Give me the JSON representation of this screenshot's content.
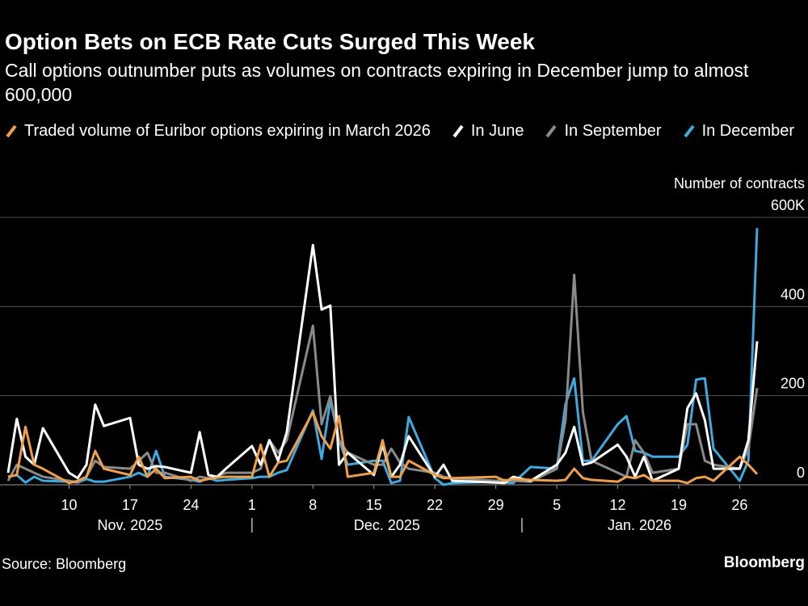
{
  "chart_data": {
    "type": "line",
    "title": "Option Bets on ECB Rate Cuts Surged This Week",
    "subtitle": "Call options outnumber puts as volumes on contracts expiring in December jump to almost 600,000",
    "y_axis_label": "Number of contracts",
    "source": "Source: Bloomberg",
    "brand": "Bloomberg",
    "x": [
      "2025-11-03",
      "2025-11-04",
      "2025-11-05",
      "2025-11-06",
      "2025-11-07",
      "2025-11-10",
      "2025-11-11",
      "2025-11-12",
      "2025-11-13",
      "2025-11-14",
      "2025-11-17",
      "2025-11-18",
      "2025-11-19",
      "2025-11-20",
      "2025-11-21",
      "2025-11-24",
      "2025-11-25",
      "2025-11-26",
      "2025-11-27",
      "2025-11-28",
      "2025-12-01",
      "2025-12-02",
      "2025-12-03",
      "2025-12-04",
      "2025-12-05",
      "2025-12-08",
      "2025-12-09",
      "2025-12-10",
      "2025-12-11",
      "2025-12-12",
      "2025-12-15",
      "2025-12-16",
      "2025-12-17",
      "2025-12-18",
      "2025-12-19",
      "2025-12-22",
      "2025-12-23",
      "2025-12-24",
      "2025-12-29",
      "2025-12-30",
      "2025-12-31",
      "2026-01-02",
      "2026-01-05",
      "2026-01-06",
      "2026-01-07",
      "2026-01-08",
      "2026-01-09",
      "2026-01-12",
      "2026-01-13",
      "2026-01-14",
      "2026-01-15",
      "2026-01-16",
      "2026-01-19",
      "2026-01-20",
      "2026-01-21",
      "2026-01-22",
      "2026-01-23",
      "2026-01-26",
      "2026-01-27",
      "2026-01-28"
    ],
    "xlim": [
      "2025-11-03",
      "2026-01-28"
    ],
    "xticks": [
      {
        "value": "2025-11-10",
        "label": "10"
      },
      {
        "value": "2025-11-17",
        "label": "17"
      },
      {
        "value": "2025-11-24",
        "label": "24"
      },
      {
        "value": "2025-12-01",
        "label": "1"
      },
      {
        "value": "2025-12-08",
        "label": "8"
      },
      {
        "value": "2025-12-15",
        "label": "15"
      },
      {
        "value": "2025-12-22",
        "label": "22"
      },
      {
        "value": "2025-12-29",
        "label": "29"
      },
      {
        "value": "2026-01-05",
        "label": "5"
      },
      {
        "value": "2026-01-12",
        "label": "12"
      },
      {
        "value": "2026-01-19",
        "label": "19"
      },
      {
        "value": "2026-01-26",
        "label": "26"
      }
    ],
    "x_groups": [
      {
        "label": "Nov. 2025",
        "start": "2025-11-01",
        "end": "2025-12-01"
      },
      {
        "label": "Dec. 2025",
        "start": "2025-12-01",
        "end": "2026-01-01"
      },
      {
        "label": "Jan. 2026",
        "start": "2026-01-01",
        "end": "2026-01-31"
      }
    ],
    "ylim": [
      0,
      600
    ],
    "yticks": [
      0,
      200,
      400,
      {
        "value": 600,
        "label": "600K"
      }
    ],
    "grid": true,
    "series": [
      {
        "name": "Traded volume of Euribor options expiring in March 2026",
        "color": "#f0a04b",
        "values": [
          18,
          22,
          130,
          45,
          36,
          4,
          9,
          18,
          76,
          36,
          22,
          63,
          18,
          36,
          15,
          18,
          9,
          13,
          16,
          18,
          18,
          90,
          18,
          50,
          54,
          163,
          109,
          81,
          154,
          18,
          27,
          100,
          18,
          18,
          54,
          22,
          15,
          15,
          18,
          9,
          13,
          11,
          9,
          11,
          36,
          15,
          11,
          7,
          18,
          15,
          22,
          9,
          9,
          4,
          15,
          18,
          9,
          63,
          45,
          24
        ]
      },
      {
        "name": "In June",
        "color": "#ffffff",
        "values": [
          27,
          148,
          63,
          45,
          127,
          27,
          15,
          45,
          180,
          132,
          150,
          45,
          36,
          42,
          40,
          27,
          118,
          22,
          18,
          36,
          87,
          45,
          100,
          54,
          118,
          538,
          393,
          402,
          45,
          72,
          22,
          90,
          18,
          45,
          109,
          18,
          45,
          9,
          5,
          4,
          18,
          9,
          45,
          72,
          130,
          45,
          50,
          90,
          63,
          18,
          63,
          9,
          36,
          172,
          205,
          145,
          36,
          36,
          100,
          322
        ]
      },
      {
        "name": "In September",
        "color": "#8a8a8a",
        "values": [
          9,
          45,
          36,
          27,
          18,
          9,
          5,
          18,
          54,
          40,
          36,
          54,
          72,
          27,
          27,
          9,
          18,
          15,
          18,
          27,
          27,
          36,
          100,
          72,
          100,
          357,
          136,
          199,
          100,
          72,
          45,
          45,
          81,
          50,
          36,
          27,
          18,
          15,
          9,
          11,
          9,
          7,
          36,
          145,
          471,
          163,
          54,
          27,
          18,
          100,
          72,
          27,
          36,
          136,
          136,
          54,
          45,
          36,
          81,
          217
        ]
      },
      {
        "name": "In December",
        "color": "#3fa9e0",
        "values": [
          18,
          22,
          5,
          18,
          9,
          7,
          5,
          13,
          7,
          7,
          18,
          27,
          18,
          76,
          18,
          11,
          7,
          15,
          9,
          11,
          15,
          18,
          18,
          27,
          33,
          167,
          58,
          190,
          100,
          45,
          54,
          54,
          4,
          9,
          152,
          15,
          0,
          4,
          7,
          5,
          4,
          40,
          36,
          181,
          239,
          54,
          54,
          136,
          154,
          76,
          72,
          63,
          63,
          90,
          236,
          239,
          81,
          9,
          54,
          576
        ]
      }
    ]
  }
}
